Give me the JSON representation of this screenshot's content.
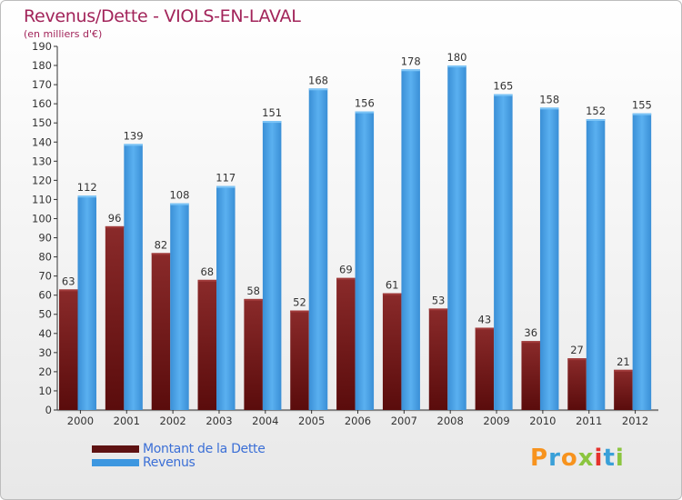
{
  "title": "Revenus/Dette - VIOLS-EN-LAVAL",
  "subtitle": "(en milliers d'€)",
  "logo": {
    "text": "Proxiti",
    "colors": [
      "#f7931e",
      "#3aa0d8",
      "#f7931e",
      "#8bc53f",
      "#e5322d",
      "#3aa0d8",
      "#8bc53f"
    ]
  },
  "chart_data": {
    "type": "bar",
    "categories": [
      "2000",
      "2001",
      "2002",
      "2003",
      "2004",
      "2005",
      "2006",
      "2007",
      "2008",
      "2009",
      "2010",
      "2011",
      "2012"
    ],
    "series": [
      {
        "name": "Montant de la Dette",
        "values": [
          63,
          96,
          82,
          68,
          58,
          52,
          69,
          61,
          53,
          43,
          36,
          27,
          21
        ],
        "color": "#7a1a1a",
        "legend_color": "#5e1212"
      },
      {
        "name": "Revenus",
        "values": [
          112,
          139,
          108,
          117,
          151,
          168,
          156,
          178,
          180,
          165,
          158,
          152,
          155
        ],
        "color": "#4aa3e8",
        "legend_color": "#3d97e0"
      }
    ],
    "ylim": [
      0,
      190
    ],
    "ytick_step": 10,
    "grid": false,
    "legend_placement": "bottom-left"
  }
}
